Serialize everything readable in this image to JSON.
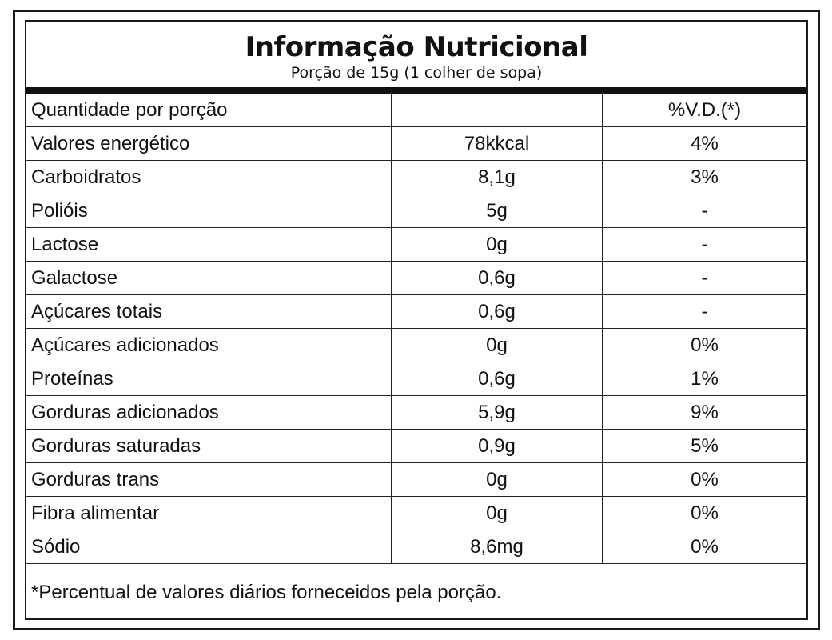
{
  "header": {
    "title": "Informação Nutricional",
    "serving": "Porção de 15g (1 colher de sopa)"
  },
  "table": {
    "header_row": {
      "label": "Quantidade por porção",
      "amount": "",
      "dv": "%V.D.(*)"
    },
    "rows": [
      {
        "label": "Valores energético",
        "amount": "78kkcal",
        "dv": "4%"
      },
      {
        "label": "Carboidratos",
        "amount": "8,1g",
        "dv": "3%"
      },
      {
        "label": "Polióis",
        "amount": "5g",
        "dv": "-"
      },
      {
        "label": "Lactose",
        "amount": "0g",
        "dv": "-"
      },
      {
        "label": "Galactose",
        "amount": "0,6g",
        "dv": "-"
      },
      {
        "label": "Açúcares totais",
        "amount": "0,6g",
        "dv": "-"
      },
      {
        "label": "Açúcares adicionados",
        "amount": "0g",
        "dv": "0%"
      },
      {
        "label": "Proteínas",
        "amount": "0,6g",
        "dv": "1%"
      },
      {
        "label": "Gorduras adicionados",
        "amount": "5,9g",
        "dv": "9%"
      },
      {
        "label": "Gorduras saturadas",
        "amount": "0,9g",
        "dv": "5%"
      },
      {
        "label": "Gorduras trans",
        "amount": "0g",
        "dv": "0%"
      },
      {
        "label": "Fibra alimentar",
        "amount": "0g",
        "dv": "0%"
      },
      {
        "label": "Sódio",
        "amount": "8,6mg",
        "dv": "0%"
      }
    ]
  },
  "footnote": "*Percentual de valores diários forneceidos pela porção."
}
